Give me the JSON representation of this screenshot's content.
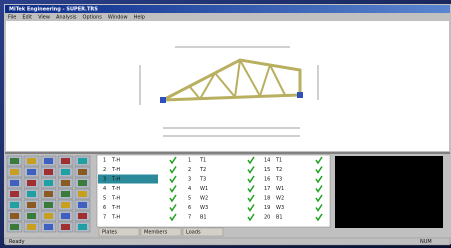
{
  "window": {
    "title": "MiTek Engineering - SUPER.TRS",
    "menu": [
      "File",
      "Edit",
      "View",
      "Analysis",
      "Options",
      "Window",
      "Help"
    ]
  },
  "table": {
    "rows": [
      [
        "1",
        "T-H",
        "1",
        "T1",
        "14",
        "T1"
      ],
      [
        "2",
        "T-H",
        "2",
        "T2",
        "15",
        "T2"
      ],
      [
        "3",
        "T-H",
        "3",
        "T3",
        "16",
        "T3"
      ],
      [
        "4",
        "T-H",
        "4",
        "W1",
        "17",
        "W1"
      ],
      [
        "5",
        "T-H",
        "5",
        "W2",
        "18",
        "W2"
      ],
      [
        "6",
        "T-H",
        "6",
        "W3",
        "19",
        "W3"
      ],
      [
        "7",
        "T-H",
        "7",
        "B1",
        "20",
        "B1"
      ]
    ]
  },
  "tabs": [
    "Plates",
    "Members",
    "Loads"
  ],
  "status": [
    "Ready",
    "NUM"
  ]
}
